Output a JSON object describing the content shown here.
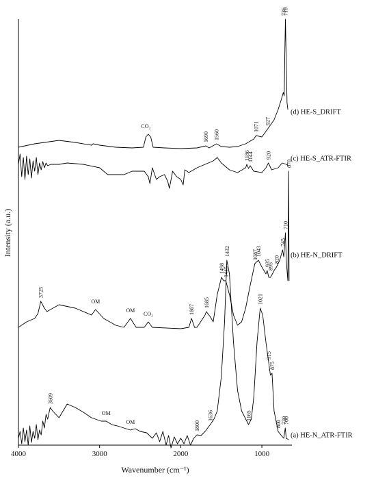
{
  "chart_data": {
    "type": "line",
    "x_label": "Wavenumber (cm⁻¹)",
    "y_label": "Intensity (a.u.)",
    "xlim": [
      4000,
      630
    ],
    "xticks": [
      4000,
      3000,
      2000,
      1000
    ],
    "ylim": [
      0,
      622
    ],
    "series": [
      {
        "name": "(a) HE-N_ATR-FTIR",
        "color": "#000000",
        "x": [
          4000,
          3980,
          3960,
          3940,
          3920,
          3900,
          3880,
          3860,
          3840,
          3820,
          3800,
          3780,
          3760,
          3740,
          3720,
          3700,
          3680,
          3660,
          3640,
          3609,
          3580,
          3500,
          3400,
          3300,
          3200,
          3100,
          2980,
          2920,
          2850,
          2780,
          2700,
          2620,
          2560,
          2500,
          2420,
          2350,
          2300,
          2260,
          2220,
          2180,
          2150,
          2120,
          2080,
          2040,
          2000,
          1960,
          1920,
          1880,
          1840,
          1800,
          1750,
          1700,
          1636,
          1590,
          1550,
          1500,
          1460,
          1432,
          1400,
          1350,
          1300,
          1250,
          1165,
          1130,
          1100,
          1060,
          1021,
          990,
          950,
          915,
          895,
          875,
          850,
          800,
          760,
          730,
          712,
          700,
          670
        ],
        "values": [
          10,
          20,
          2,
          25,
          5,
          22,
          0,
          28,
          4,
          20,
          10,
          30,
          8,
          22,
          15,
          35,
          25,
          45,
          38,
          55,
          50,
          40,
          60,
          55,
          48,
          40,
          35,
          35,
          30,
          28,
          25,
          22,
          24,
          20,
          18,
          10,
          18,
          5,
          20,
          0,
          14,
          -4,
          12,
          2,
          10,
          2,
          14,
          0,
          10,
          15,
          14,
          20,
          30,
          38,
          50,
          100,
          180,
          270,
          250,
          150,
          80,
          50,
          30,
          38,
          70,
          150,
          200,
          190,
          150,
          120,
          102,
          105,
          50,
          20,
          14,
          10,
          25,
          10,
          8
        ],
        "peaks": [
          3609,
          1800,
          1636,
          1432,
          1165,
          1021,
          915,
          875,
          800,
          730,
          700
        ],
        "notes": [
          {
            "text": "OM",
            "x": 2920
          },
          {
            "text": "OM",
            "x": 2620
          }
        ]
      },
      {
        "name": "(b) HE-N_DRIFT",
        "color": "#000000",
        "x": [
          4000,
          3900,
          3800,
          3760,
          3725,
          3680,
          3650,
          3500,
          3300,
          3100,
          3050,
          2950,
          2800,
          2700,
          2620,
          2550,
          2450,
          2400,
          2350,
          2000,
          1900,
          1867,
          1830,
          1800,
          1700,
          1685,
          1640,
          1600,
          1550,
          1498,
          1470,
          1445,
          1400,
          1350,
          1300,
          1250,
          1200,
          1150,
          1087,
          1043,
          1000,
          950,
          935,
          915,
          895,
          870,
          850,
          820,
          780,
          745,
          730,
          710,
          700,
          680,
          670,
          665
        ],
        "values": [
          172,
          180,
          185,
          192,
          210,
          200,
          195,
          205,
          200,
          190,
          198,
          185,
          175,
          172,
          185,
          172,
          172,
          180,
          172,
          170,
          172,
          185,
          172,
          172,
          190,
          195,
          188,
          180,
          220,
          245,
          240,
          240,
          220,
          190,
          175,
          180,
          200,
          230,
          265,
          270,
          260,
          250,
          255,
          245,
          245,
          250,
          255,
          260,
          270,
          285,
          275,
          310,
          270,
          240,
          400,
          240
        ],
        "peaks": [
          3725,
          1867,
          1685,
          1498,
          1445,
          1087,
          1043,
          935,
          895,
          820,
          745,
          710,
          670
        ],
        "notes": [
          {
            "text": "OM",
            "x": 3050
          },
          {
            "text": "OM",
            "x": 2620
          },
          {
            "text": "CO₂",
            "x": 2400
          }
        ]
      },
      {
        "name": "(c) HE-S_ATR-FTIR",
        "color": "#000000",
        "x": [
          4000,
          3980,
          3960,
          3940,
          3920,
          3900,
          3880,
          3860,
          3840,
          3820,
          3800,
          3780,
          3760,
          3740,
          3720,
          3700,
          3680,
          3660,
          3640,
          3600,
          3500,
          3400,
          3200,
          3000,
          2900,
          2700,
          2600,
          2450,
          2400,
          2380,
          2350,
          2300,
          2260,
          2200,
          2160,
          2140,
          2100,
          2050,
          2000,
          1970,
          1950,
          1900,
          1800,
          1700,
          1600,
          1550,
          1500,
          1400,
          1300,
          1200,
          1186,
          1165,
          1144,
          1100,
          1000,
          950,
          920,
          880,
          800,
          750,
          700,
          670
        ],
        "values": [
          410,
          425,
          392,
          420,
          388,
          422,
          395,
          418,
          390,
          415,
          400,
          420,
          395,
          412,
          402,
          414,
          405,
          412,
          408,
          410,
          410,
          412,
          410,
          405,
          395,
          395,
          400,
          400,
          392,
          382,
          405,
          388,
          392,
          395,
          385,
          375,
          400,
          392,
          388,
          380,
          402,
          398,
          405,
          410,
          415,
          420,
          412,
          402,
          398,
          405,
          410,
          404,
          408,
          400,
          398,
          405,
          412,
          402,
          405,
          412,
          410,
          408
        ],
        "peaks": [
          1186,
          1144,
          920
        ],
        "notes": []
      },
      {
        "name": "(d) HE-S_DRIFT",
        "color": "#000000",
        "x": [
          4000,
          3800,
          3500,
          3300,
          3100,
          3080,
          3000,
          2800,
          2600,
          2460,
          2430,
          2400,
          2370,
          2340,
          2200,
          2000,
          1800,
          1690,
          1650,
          1560,
          1500,
          1400,
          1300,
          1200,
          1100,
          1071,
          1000,
          927,
          850,
          800,
          760,
          736,
          725,
          715,
          710,
          700,
          690,
          680
        ],
        "values": [
          435,
          440,
          445,
          442,
          438,
          440,
          438,
          435,
          434,
          435,
          450,
          454,
          450,
          435,
          434,
          433,
          434,
          437,
          434,
          440,
          436,
          435,
          436,
          440,
          447,
          452,
          450,
          462,
          475,
          490,
          505,
          515,
          510,
          590,
          622,
          560,
          500,
          490
        ],
        "peaks": [
          1690,
          1560,
          1071,
          927,
          736,
          710
        ],
        "notes": [
          {
            "text": "CO₂",
            "x": 2430
          }
        ]
      }
    ]
  }
}
